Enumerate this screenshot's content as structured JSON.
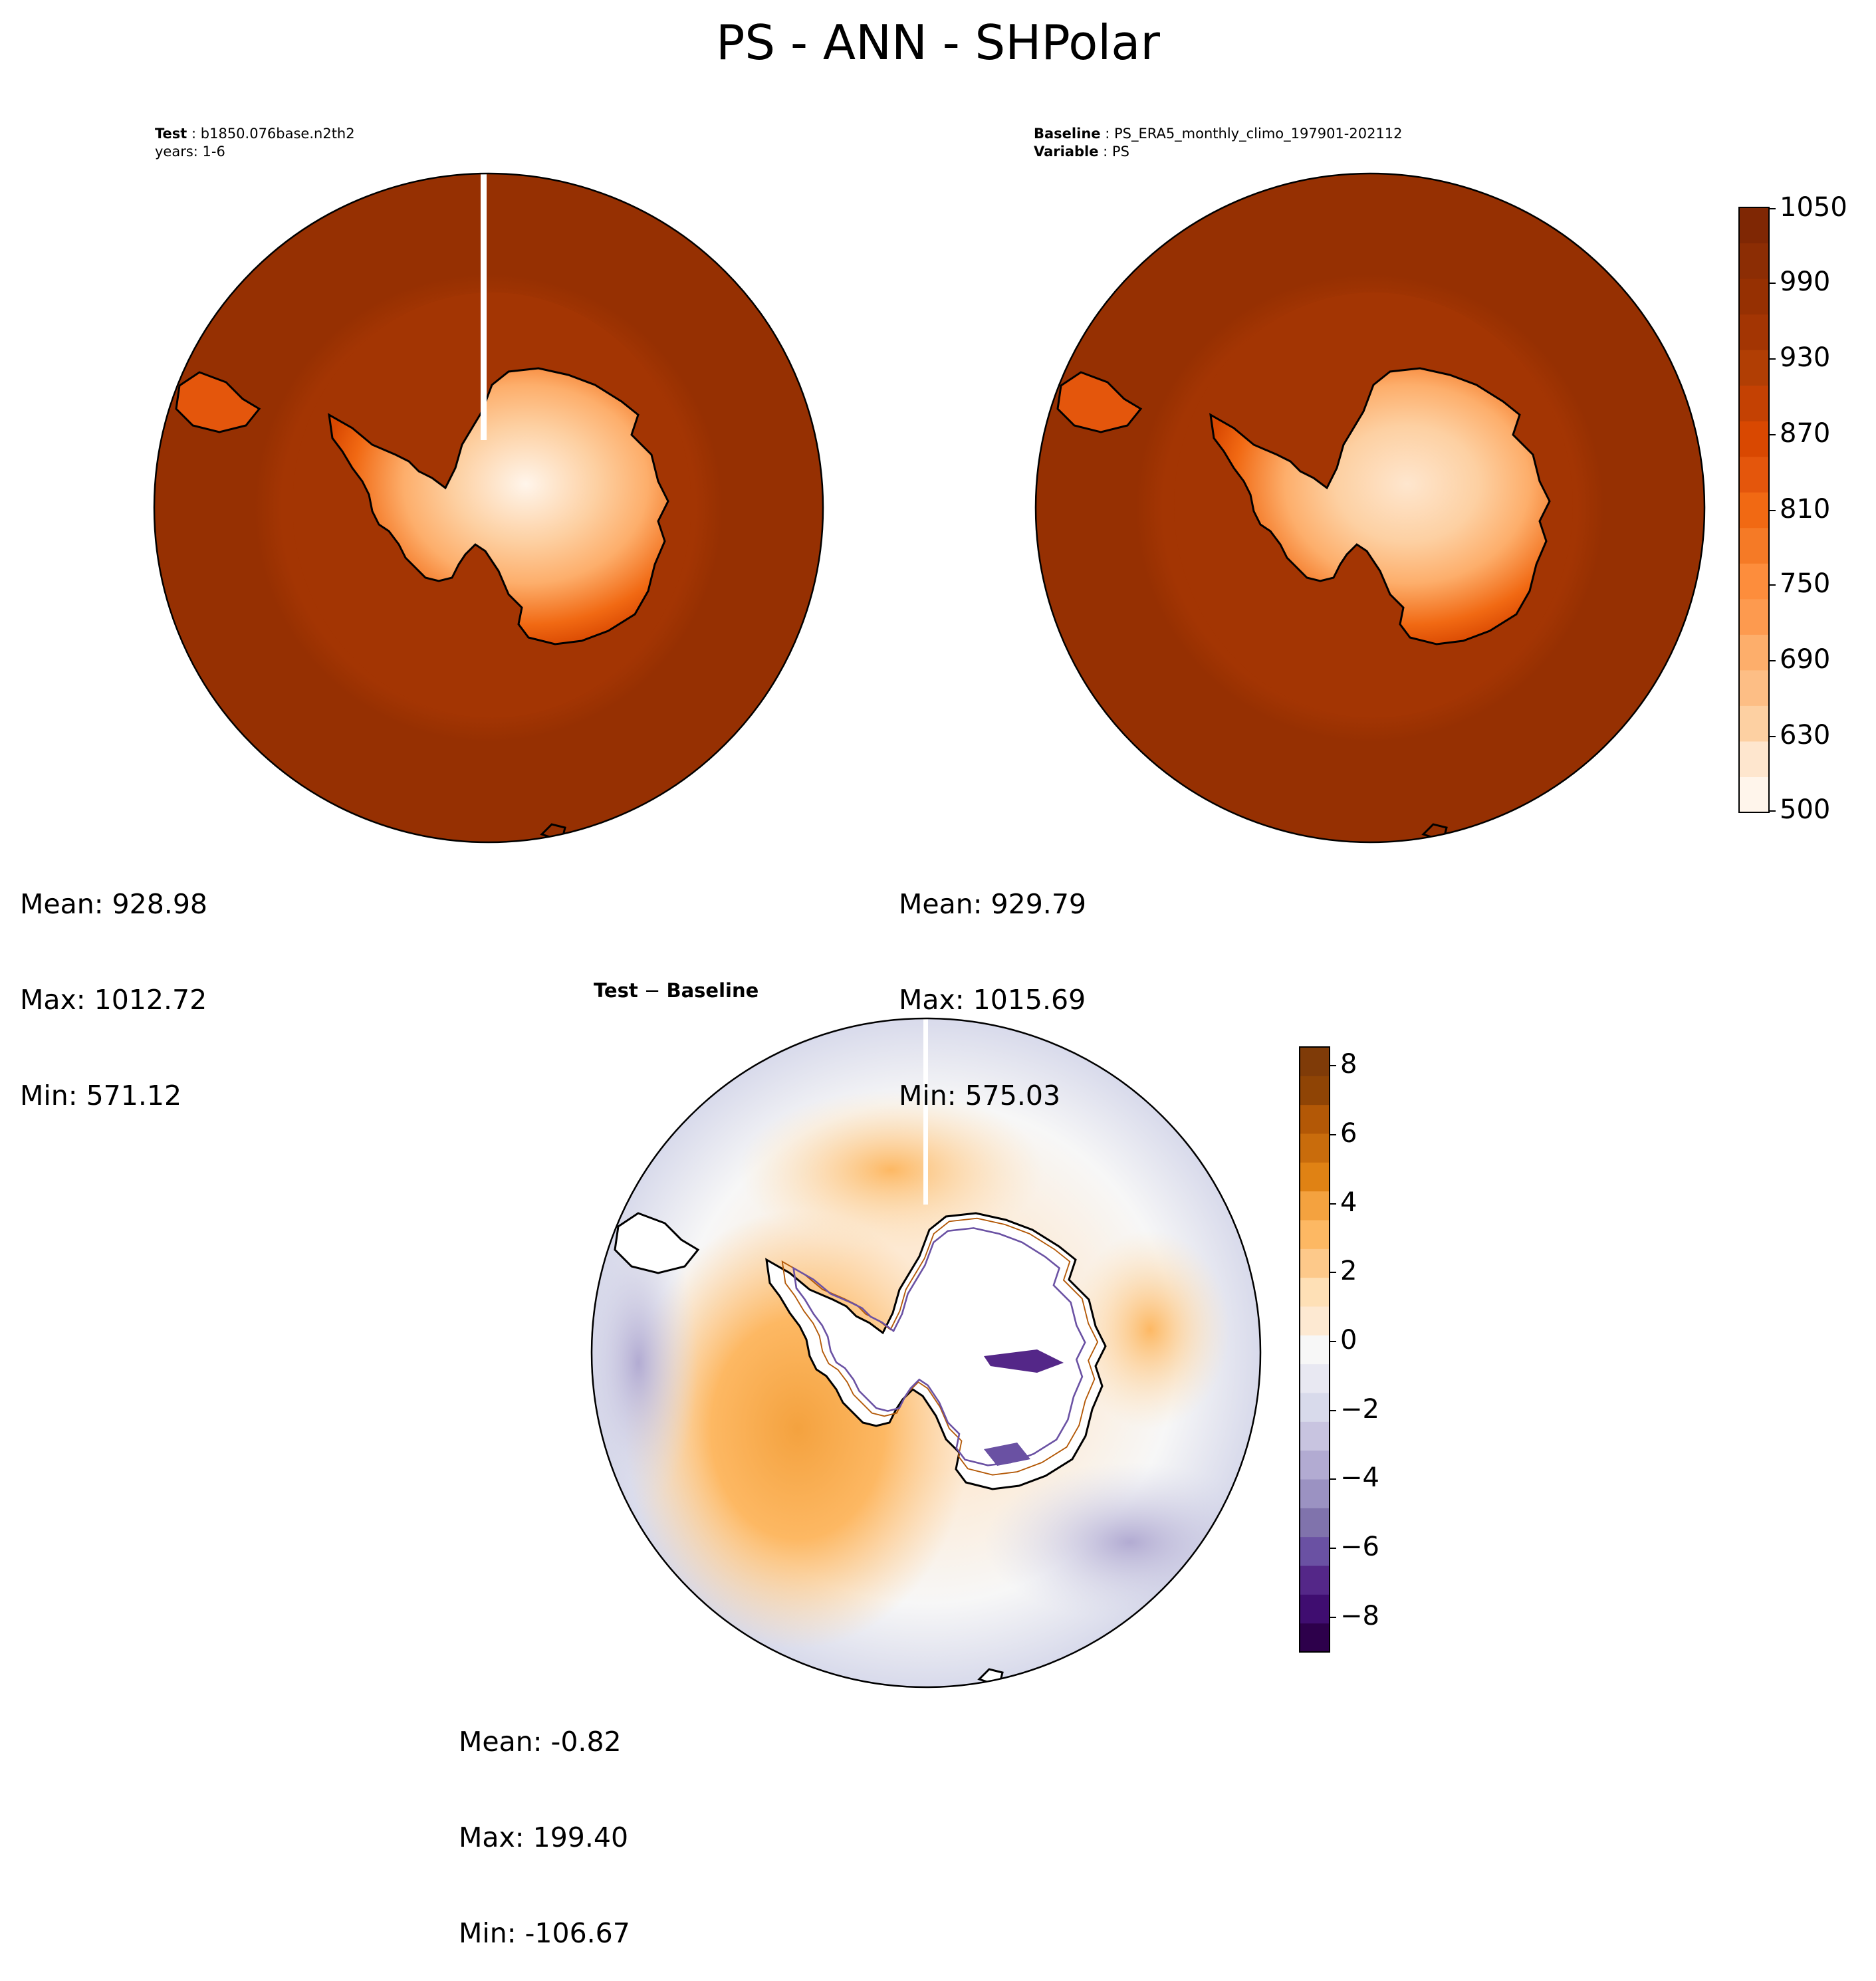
{
  "figure": {
    "title": "PS - ANN - SHPolar"
  },
  "panels": {
    "test": {
      "label_key": "Test",
      "case": "b1850.076base.n2th2",
      "years": "years: 1-6",
      "mean": "Mean: 928.98",
      "max": "Max: 1012.72",
      "min": "Min: 571.12"
    },
    "baseline": {
      "label_key": "Baseline",
      "case": "PS_ERA5_monthly_climo_197901-202112",
      "variable_key": "Variable",
      "variable": "PS",
      "mean": "Mean: 929.79",
      "max": "Max: 1015.69",
      "min": "Min: 575.03"
    },
    "difference": {
      "title_a": "Test",
      "title_sep": " − ",
      "title_b": "Baseline",
      "mean": "Mean: -0.82",
      "max": "Max: 199.40",
      "min": "Min: -106.67"
    }
  },
  "colorbars": {
    "absolute": {
      "ticks": [
        "1050",
        "990",
        "930",
        "870",
        "810",
        "750",
        "690",
        "630",
        "500"
      ],
      "colors": [
        "#fff5eb",
        "#fee6ce",
        "#fdd0a2",
        "#fdbe85",
        "#fdae6b",
        "#fd9a4f",
        "#fd8d3c",
        "#f57a26",
        "#f16913",
        "#e4560c",
        "#d94801",
        "#c44103",
        "#b13e04",
        "#a33503",
        "#963002",
        "#8c2d04",
        "#7f2704"
      ]
    },
    "difference": {
      "ticks": [
        "8",
        "6",
        "4",
        "2",
        "0",
        "−2",
        "−4",
        "−6",
        "−8"
      ],
      "colors": [
        "#2d004b",
        "#3f0d70",
        "#542788",
        "#6a51a3",
        "#8073ac",
        "#9b92c2",
        "#b2abd2",
        "#c8c4e0",
        "#d8daeb",
        "#e8e8f2",
        "#f7f7f7",
        "#fde9d2",
        "#fee0b6",
        "#fdc98a",
        "#fdb863",
        "#f4a23f",
        "#e08214",
        "#c96c0c",
        "#b35806",
        "#8f4405",
        "#7f3b08"
      ]
    }
  },
  "chart_data": {
    "type": "heatmap",
    "title": "PS - ANN - SHPolar",
    "projection": "south-polar-stereographic",
    "maps": [
      {
        "name": "Test",
        "mean": 928.98,
        "max": 1012.72,
        "min": 571.12,
        "colorbar_range": [
          500,
          1050
        ]
      },
      {
        "name": "Baseline",
        "mean": 929.79,
        "max": 1015.69,
        "min": 575.03,
        "colorbar_range": [
          500,
          1050
        ]
      },
      {
        "name": "Test − Baseline",
        "mean": -0.82,
        "max": 199.4,
        "min": -106.67,
        "colorbar_range": [
          -9,
          8.5
        ]
      }
    ]
  }
}
